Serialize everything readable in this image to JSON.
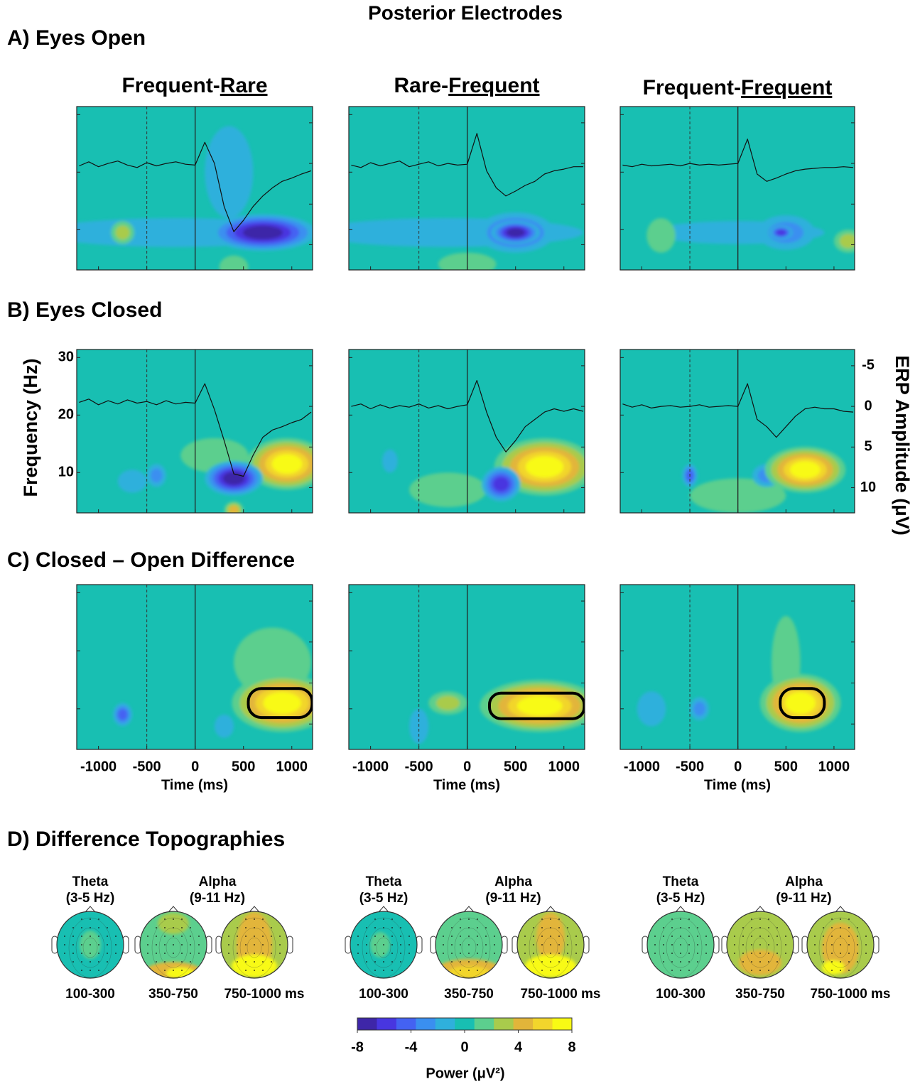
{
  "title": "Posterior Electrodes",
  "sections": [
    "A)  Eyes Open",
    "B)  Eyes Closed",
    "C)  Closed – Open Difference",
    "D)  Difference Topographies"
  ],
  "columns": [
    {
      "prefix": "Frequent-",
      "underlined": "Rare"
    },
    {
      "prefix": "Rare-",
      "underlined": "Frequent"
    },
    {
      "prefix": "Frequent-",
      "underlined": "Frequent"
    }
  ],
  "axes": {
    "xlabel": "Time (ms)",
    "xlim": [
      -1225,
      1215
    ],
    "xticks": [
      -1000,
      -500,
      0,
      500,
      1000
    ],
    "ylabel": "Frequency (Hz)",
    "ylim": [
      3,
      31.4
    ],
    "yticks": [
      10,
      20,
      30
    ],
    "y2label": "ERP Amplitude (μV)",
    "y2lim": [
      -7,
      13.1
    ],
    "y2ticks": [
      -5,
      0,
      5,
      10
    ],
    "y2_inverted": true,
    "erp_times": [
      -1200,
      -1100,
      -1000,
      -900,
      -800,
      -700,
      -600,
      -500,
      -400,
      -300,
      -200,
      -100,
      0,
      100,
      200,
      300,
      400,
      500,
      600,
      700,
      800,
      900,
      1000,
      1100,
      1200
    ]
  },
  "chart_data": [
    {
      "type": "spectrogram",
      "values": [
        0.3,
        -0.2,
        0.4,
        0,
        -0.3,
        0.2,
        0.5,
        -0.1,
        0.3,
        0,
        -0.2,
        0.1,
        0.2,
        -2.6,
        0,
        5.3,
        8.4,
        7,
        5.3,
        4,
        3,
        2.2,
        1.8,
        1.3,
        0.9
      ]
    },
    {
      "type": "spectrogram",
      "values": [
        0.2,
        0.5,
        -0.1,
        0.3,
        0,
        -0.3,
        0.4,
        0.1,
        -0.2,
        0.3,
        0,
        0.2,
        0.1,
        -3.7,
        0.9,
        3,
        4,
        3.4,
        2.7,
        2.2,
        1.3,
        0.9,
        0.7,
        0.4,
        0.4
      ]
    },
    {
      "type": "spectrogram",
      "values": [
        0.2,
        0.4,
        0.1,
        0.3,
        0.2,
        0.1,
        0.3,
        0,
        0.2,
        0.1,
        0.2,
        0.1,
        0,
        -3,
        1.3,
        2.2,
        1.8,
        1.3,
        0.9,
        0.7,
        0.6,
        0.5,
        0.5,
        0.4,
        0.5
      ]
    },
    {
      "type": "spectrogram",
      "values": [
        -0.5,
        -0.9,
        -0.2,
        -0.7,
        -0.3,
        -0.8,
        -0.4,
        -0.6,
        -0.2,
        -0.7,
        -0.3,
        -0.5,
        -0.4,
        -2.8,
        0.4,
        4.2,
        8.3,
        8.6,
        6,
        3.8,
        2.9,
        2.5,
        2,
        1.6,
        0.7
      ]
    },
    {
      "type": "spectrogram",
      "values": [
        0,
        -0.3,
        0.3,
        -0.2,
        0.2,
        -0.1,
        0.1,
        -0.3,
        0.2,
        -0.1,
        0.3,
        0,
        -0.2,
        -3.2,
        0.7,
        3.8,
        5.6,
        4.2,
        2.5,
        1.6,
        0.7,
        0.3,
        0.6,
        0.3,
        0.6
      ]
    },
    {
      "type": "spectrogram",
      "values": [
        -0.3,
        0.1,
        -0.2,
        0.2,
        0,
        -0.1,
        0.1,
        0,
        -0.2,
        0.1,
        0,
        -0.1,
        0,
        -2.8,
        1.6,
        2.5,
        3.8,
        2.5,
        1.2,
        0.3,
        0.1,
        0.3,
        0.3,
        0.6,
        0.7
      ]
    },
    {
      "type": "spectrogram"
    },
    {
      "type": "spectrogram"
    },
    {
      "type": "spectrogram"
    }
  ],
  "topographies": {
    "bands": [
      {
        "name": "Theta",
        "range": "(3-5 Hz)"
      },
      {
        "name": "Alpha",
        "range": "(9-11 Hz)"
      }
    ],
    "windows": [
      "100-300",
      "350-750",
      "750-1000 ms"
    ]
  },
  "colorbar": {
    "colors": [
      "#3e26a8",
      "#4836e0",
      "#4462f2",
      "#3a8ff0",
      "#2fb0dc",
      "#18bfb2",
      "#5ccf8e",
      "#a9cb4c",
      "#e2b53a",
      "#f2d52c",
      "#f8fa14"
    ],
    "lim": [
      -8,
      8
    ],
    "ticks": [
      -8,
      -4,
      0,
      4,
      8
    ],
    "label": "Power (μV²)"
  }
}
